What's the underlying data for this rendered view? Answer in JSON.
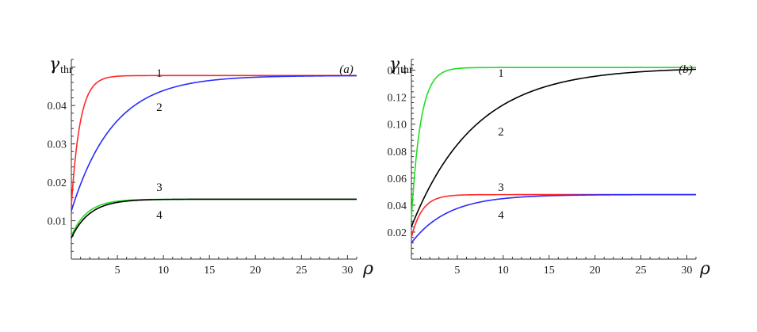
{
  "chart_data": [
    {
      "type": "line",
      "panel_label": "(a)",
      "ylabel_symbol": "γ",
      "ylabel_sub": "thr",
      "xlabel": "ρ",
      "xlim": [
        0,
        31
      ],
      "ylim": [
        0,
        0.052
      ],
      "xticks": [
        5,
        10,
        15,
        20,
        25,
        30
      ],
      "yticks": [
        0.01,
        0.02,
        0.03,
        0.04
      ],
      "ytick_labels": [
        "0.01",
        "0.02",
        "0.03",
        "0.04"
      ],
      "series": [
        {
          "label": "1",
          "color": "#ff2a2a",
          "y0": 0.014,
          "yinf": 0.0478,
          "k": 1.05
        },
        {
          "label": "2",
          "color": "#2a2aff",
          "y0": 0.0125,
          "yinf": 0.0478,
          "k": 0.22
        },
        {
          "label": "3",
          "color": "#22dd22",
          "y0": 0.006,
          "yinf": 0.0156,
          "k": 0.58
        },
        {
          "label": "4",
          "color": "#000000",
          "y0": 0.0055,
          "yinf": 0.0156,
          "k": 0.5
        }
      ]
    },
    {
      "type": "line",
      "panel_label": "(b)",
      "ylabel_symbol": "γ",
      "ylabel_sub": "thr",
      "xlabel": "ρ",
      "xlim": [
        0,
        31
      ],
      "ylim": [
        0,
        0.148
      ],
      "xticks": [
        5,
        10,
        15,
        20,
        25,
        30
      ],
      "yticks": [
        0.02,
        0.04,
        0.06,
        0.08,
        0.1,
        0.12,
        0.14
      ],
      "ytick_labels": [
        "0.02",
        "0.04",
        "0.06",
        "0.08",
        "0.10",
        "0.12",
        "0.14"
      ],
      "series": [
        {
          "label": "1",
          "color": "#22dd22",
          "y0": 0.03,
          "yinf": 0.142,
          "k": 1.0
        },
        {
          "label": "2",
          "color": "#000000",
          "y0": 0.024,
          "yinf": 0.142,
          "k": 0.145
        },
        {
          "label": "3",
          "color": "#ff2a2a",
          "y0": 0.016,
          "yinf": 0.0478,
          "k": 0.85
        },
        {
          "label": "4",
          "color": "#2a2aff",
          "y0": 0.012,
          "yinf": 0.0478,
          "k": 0.25
        }
      ]
    }
  ]
}
